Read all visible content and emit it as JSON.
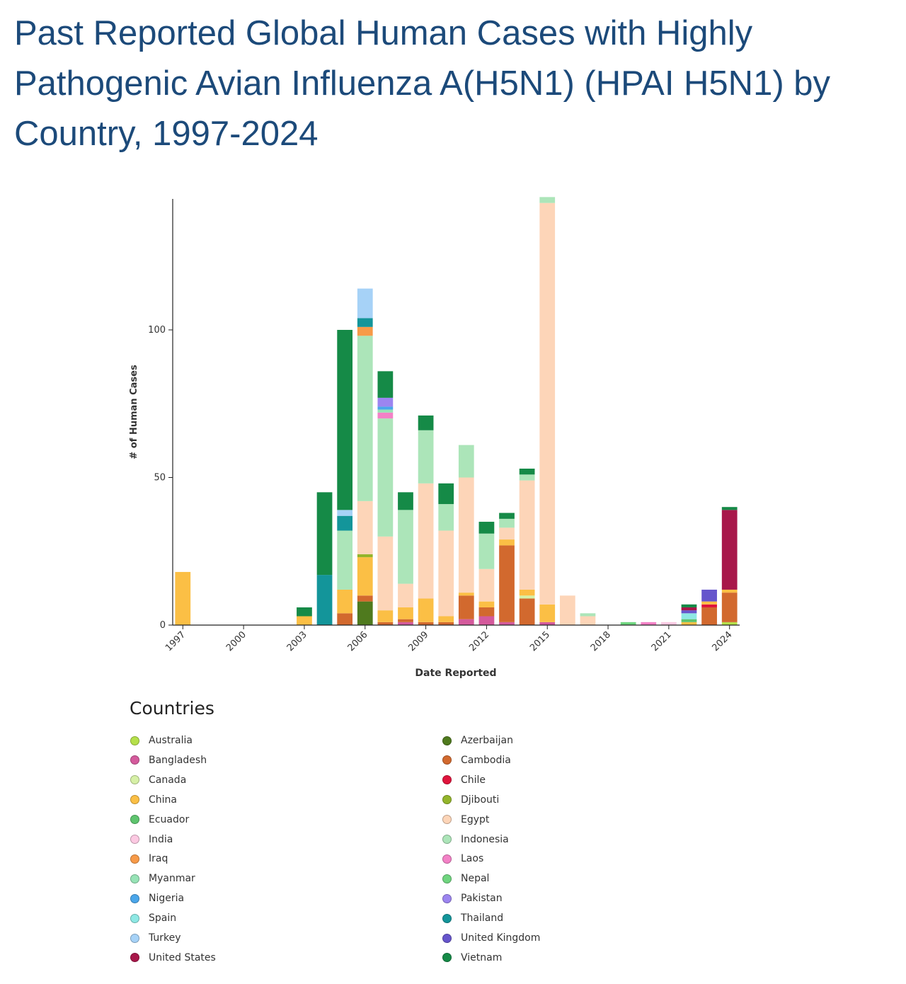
{
  "title": "Past Reported Global Human Cases with Highly Pathogenic Avian Influenza A(H5N1) (HPAI H5N1) by Country, 1997-2024",
  "chart_data": {
    "type": "bar",
    "stacked": true,
    "xlabel": "Date Reported",
    "ylabel": "# of Human Cases",
    "ylim": [
      0,
      145
    ],
    "yticks": [
      0,
      50,
      100
    ],
    "xticks": [
      "1997",
      "2000",
      "2003",
      "2006",
      "2009",
      "2012",
      "2015",
      "2018",
      "2021",
      "2024"
    ],
    "categories": [
      "1997",
      "1998",
      "1999",
      "2000",
      "2001",
      "2002",
      "2003",
      "2004",
      "2005",
      "2006",
      "2007",
      "2008",
      "2009",
      "2010",
      "2011",
      "2012",
      "2013",
      "2014",
      "2015",
      "2016",
      "2017",
      "2018",
      "2019",
      "2020",
      "2021",
      "2022",
      "2023",
      "2024"
    ],
    "legend_title": "Countries",
    "legend_placement": "bottom",
    "series": [
      {
        "name": "Australia",
        "color": "#b5e04a",
        "values": [
          0,
          0,
          0,
          0,
          0,
          0,
          0,
          0,
          0,
          0,
          0,
          0,
          0,
          0,
          0,
          0,
          0,
          0,
          0,
          0,
          0,
          0,
          0,
          0,
          0,
          0,
          0,
          1
        ]
      },
      {
        "name": "Azerbaijan",
        "color": "#4f7a1e",
        "values": [
          0,
          0,
          0,
          0,
          0,
          0,
          0,
          0,
          0,
          8,
          0,
          0,
          0,
          0,
          0,
          0,
          0,
          0,
          0,
          0,
          0,
          0,
          0,
          0,
          0,
          0,
          0,
          0
        ]
      },
      {
        "name": "Bangladesh",
        "color": "#d45a9c",
        "values": [
          0,
          0,
          0,
          0,
          0,
          0,
          0,
          0,
          0,
          0,
          0,
          1,
          0,
          0,
          2,
          3,
          1,
          0,
          1,
          0,
          0,
          0,
          0,
          0,
          0,
          0,
          0,
          0
        ]
      },
      {
        "name": "Cambodia",
        "color": "#d2692e",
        "values": [
          0,
          0,
          0,
          0,
          0,
          0,
          0,
          0,
          4,
          2,
          1,
          1,
          1,
          1,
          8,
          3,
          26,
          9,
          0,
          0,
          0,
          0,
          0,
          0,
          0,
          0,
          6,
          10
        ]
      },
      {
        "name": "Canada",
        "color": "#d6f0a6",
        "values": [
          0,
          0,
          0,
          0,
          0,
          0,
          0,
          0,
          0,
          0,
          0,
          0,
          0,
          0,
          0,
          0,
          0,
          1,
          0,
          0,
          0,
          0,
          0,
          0,
          0,
          0,
          0,
          0
        ]
      },
      {
        "name": "Chile",
        "color": "#e0143c",
        "values": [
          0,
          0,
          0,
          0,
          0,
          0,
          0,
          0,
          0,
          0,
          0,
          0,
          0,
          0,
          0,
          0,
          0,
          0,
          0,
          0,
          0,
          0,
          0,
          0,
          0,
          0,
          1,
          0
        ]
      },
      {
        "name": "China",
        "color": "#fbbf45",
        "values": [
          18,
          0,
          0,
          0,
          0,
          0,
          3,
          0,
          8,
          13,
          4,
          4,
          8,
          2,
          1,
          2,
          2,
          2,
          6,
          0,
          0,
          0,
          0,
          0,
          0,
          1,
          1,
          1
        ]
      },
      {
        "name": "Djibouti",
        "color": "#93b52b",
        "values": [
          0,
          0,
          0,
          0,
          0,
          0,
          0,
          0,
          0,
          1,
          0,
          0,
          0,
          0,
          0,
          0,
          0,
          0,
          0,
          0,
          0,
          0,
          0,
          0,
          0,
          0,
          0,
          0
        ]
      },
      {
        "name": "Ecuador",
        "color": "#5ec46e",
        "values": [
          0,
          0,
          0,
          0,
          0,
          0,
          0,
          0,
          0,
          0,
          0,
          0,
          0,
          0,
          0,
          0,
          0,
          0,
          0,
          0,
          0,
          0,
          0,
          0,
          0,
          1,
          0,
          0
        ]
      },
      {
        "name": "Egypt",
        "color": "#fdd5b8",
        "values": [
          0,
          0,
          0,
          0,
          0,
          0,
          0,
          0,
          0,
          18,
          25,
          8,
          39,
          29,
          39,
          11,
          4,
          37,
          136,
          10,
          3,
          0,
          0,
          0,
          0,
          0,
          0,
          0
        ]
      },
      {
        "name": "India",
        "color": "#fcc9e2",
        "values": [
          0,
          0,
          0,
          0,
          0,
          0,
          0,
          0,
          0,
          0,
          0,
          0,
          0,
          0,
          0,
          0,
          0,
          0,
          0,
          0,
          0,
          0,
          0,
          0,
          1,
          0,
          0,
          0
        ]
      },
      {
        "name": "Indonesia",
        "color": "#ace5b9",
        "values": [
          0,
          0,
          0,
          0,
          0,
          0,
          0,
          0,
          20,
          56,
          40,
          25,
          18,
          9,
          11,
          12,
          3,
          2,
          2,
          0,
          1,
          0,
          0,
          0,
          0,
          0,
          0,
          0
        ]
      },
      {
        "name": "Iraq",
        "color": "#f79a48",
        "values": [
          0,
          0,
          0,
          0,
          0,
          0,
          0,
          0,
          0,
          3,
          0,
          0,
          0,
          0,
          0,
          0,
          0,
          0,
          0,
          0,
          0,
          0,
          0,
          0,
          0,
          0,
          0,
          0
        ]
      },
      {
        "name": "Laos",
        "color": "#f381c6",
        "values": [
          0,
          0,
          0,
          0,
          0,
          0,
          0,
          0,
          0,
          0,
          2,
          0,
          0,
          0,
          0,
          0,
          0,
          0,
          0,
          0,
          0,
          0,
          0,
          1,
          0,
          0,
          0,
          0
        ]
      },
      {
        "name": "Myanmar",
        "color": "#97e3b6",
        "values": [
          0,
          0,
          0,
          0,
          0,
          0,
          0,
          0,
          0,
          0,
          1,
          0,
          0,
          0,
          0,
          0,
          0,
          0,
          0,
          0,
          0,
          0,
          0,
          0,
          0,
          0,
          0,
          0
        ]
      },
      {
        "name": "Nepal",
        "color": "#6fd57f",
        "values": [
          0,
          0,
          0,
          0,
          0,
          0,
          0,
          0,
          0,
          0,
          0,
          0,
          0,
          0,
          0,
          0,
          0,
          0,
          0,
          0,
          0,
          0,
          1,
          0,
          0,
          0,
          0,
          0
        ]
      },
      {
        "name": "Nigeria",
        "color": "#4aa6ea",
        "values": [
          0,
          0,
          0,
          0,
          0,
          0,
          0,
          0,
          0,
          0,
          1,
          0,
          0,
          0,
          0,
          0,
          0,
          0,
          0,
          0,
          0,
          0,
          0,
          0,
          0,
          0,
          0,
          0
        ]
      },
      {
        "name": "Pakistan",
        "color": "#9c85f0",
        "values": [
          0,
          0,
          0,
          0,
          0,
          0,
          0,
          0,
          0,
          0,
          3,
          0,
          0,
          0,
          0,
          0,
          0,
          0,
          0,
          0,
          0,
          0,
          0,
          0,
          0,
          0,
          0,
          0
        ]
      },
      {
        "name": "Spain",
        "color": "#8ee8e4",
        "values": [
          0,
          0,
          0,
          0,
          0,
          0,
          0,
          0,
          0,
          0,
          0,
          0,
          0,
          0,
          0,
          0,
          0,
          0,
          0,
          0,
          0,
          0,
          0,
          0,
          0,
          2,
          0,
          0
        ]
      },
      {
        "name": "Thailand",
        "color": "#13959a",
        "values": [
          0,
          0,
          0,
          0,
          0,
          0,
          0,
          17,
          5,
          3,
          0,
          0,
          0,
          0,
          0,
          0,
          0,
          0,
          0,
          0,
          0,
          0,
          0,
          0,
          0,
          0,
          0,
          0
        ]
      },
      {
        "name": "Turkey",
        "color": "#a6d2f7",
        "values": [
          0,
          0,
          0,
          0,
          0,
          0,
          0,
          0,
          2,
          10,
          0,
          0,
          0,
          0,
          0,
          0,
          0,
          0,
          0,
          0,
          0,
          0,
          0,
          0,
          0,
          0,
          0,
          0
        ]
      },
      {
        "name": "United Kingdom",
        "color": "#6655cc",
        "values": [
          0,
          0,
          0,
          0,
          0,
          0,
          0,
          0,
          0,
          0,
          0,
          0,
          0,
          0,
          0,
          0,
          0,
          0,
          0,
          0,
          0,
          0,
          0,
          0,
          0,
          1,
          4,
          0
        ]
      },
      {
        "name": "United States",
        "color": "#a8174a",
        "values": [
          0,
          0,
          0,
          0,
          0,
          0,
          0,
          0,
          0,
          0,
          0,
          0,
          0,
          0,
          0,
          0,
          0,
          0,
          0,
          0,
          0,
          0,
          0,
          0,
          0,
          1,
          0,
          27
        ]
      },
      {
        "name": "Vietnam",
        "color": "#158a47",
        "values": [
          0,
          0,
          0,
          0,
          0,
          0,
          3,
          28,
          61,
          0,
          9,
          6,
          5,
          7,
          0,
          4,
          2,
          2,
          0,
          0,
          0,
          0,
          0,
          0,
          0,
          1,
          0,
          1
        ]
      }
    ],
    "legend": [
      [
        "Australia",
        "#b5e04a"
      ],
      [
        "Azerbaijan",
        "#4f7a1e"
      ],
      [
        "Bangladesh",
        "#d45a9c"
      ],
      [
        "Cambodia",
        "#d2692e"
      ],
      [
        "Canada",
        "#d6f0a6"
      ],
      [
        "Chile",
        "#e0143c"
      ],
      [
        "China",
        "#fbbf45"
      ],
      [
        "Djibouti",
        "#93b52b"
      ],
      [
        "Ecuador",
        "#5ec46e"
      ],
      [
        "Egypt",
        "#fdd5b8"
      ],
      [
        "India",
        "#fcc9e2"
      ],
      [
        "Indonesia",
        "#ace5b9"
      ],
      [
        "Iraq",
        "#f79a48"
      ],
      [
        "Laos",
        "#f381c6"
      ],
      [
        "Myanmar",
        "#97e3b6"
      ],
      [
        "Nepal",
        "#6fd57f"
      ],
      [
        "Nigeria",
        "#4aa6ea"
      ],
      [
        "Pakistan",
        "#9c85f0"
      ],
      [
        "Spain",
        "#8ee8e4"
      ],
      [
        "Thailand",
        "#13959a"
      ],
      [
        "Turkey",
        "#a6d2f7"
      ],
      [
        "United Kingdom",
        "#6655cc"
      ],
      [
        "United States",
        "#a8174a"
      ],
      [
        "Vietnam",
        "#158a47"
      ]
    ]
  }
}
